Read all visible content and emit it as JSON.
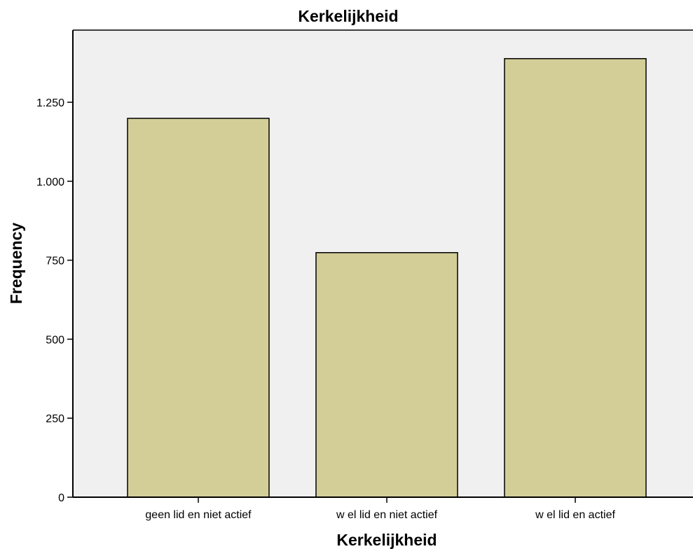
{
  "chart_data": {
    "type": "bar",
    "title": "Kerkelijkheid",
    "xlabel": "Kerkelijkheid",
    "ylabel": "Frequency",
    "categories": [
      "geen lid en niet actief",
      "w el lid en niet actief",
      "w el lid en actief"
    ],
    "values": [
      1199,
      774,
      1388
    ],
    "ylim": [
      0,
      1400
    ],
    "yticks": [
      0,
      250,
      500,
      750,
      1000,
      1250
    ],
    "ytick_labels": [
      "0",
      "250",
      "500",
      "750",
      "1.000",
      "1.250"
    ],
    "grid": false,
    "legend": "none",
    "colors": {
      "plot_background": "#f0f0f0",
      "bar_fill": "#d3ce98",
      "bar_stroke": "#000000",
      "axis": "#000000"
    }
  }
}
